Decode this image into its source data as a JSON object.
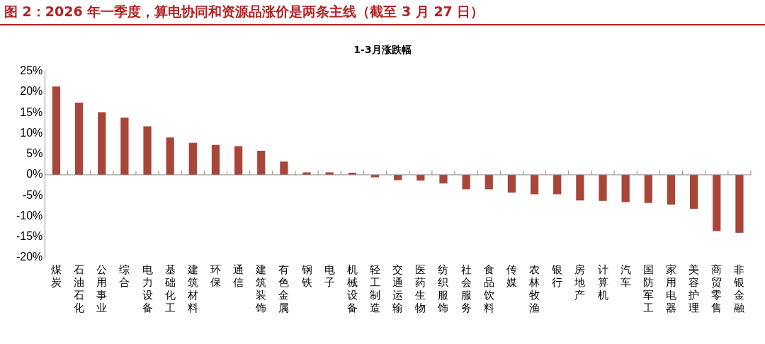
{
  "chart_data": {
    "type": "bar",
    "title": "图 2：2026 年一季度，算电协同和资源品涨价是两条主线（截至 3 月 27 日）",
    "subtitle": "1-3月涨跌幅",
    "categories": [
      "煤炭",
      "石油石化",
      "公用事业",
      "综合",
      "电力设备",
      "基础化工",
      "建筑材料",
      "环保",
      "通信",
      "建筑装饰",
      "有色金属",
      "钢铁",
      "电子",
      "机械设备",
      "轻工制造",
      "交通运输",
      "医药生物",
      "纺织服饰",
      "社会服务",
      "食品饮料",
      "传媒",
      "农林牧渔",
      "银行",
      "房地产",
      "计算机",
      "汽车",
      "国防军工",
      "家用电器",
      "美容护理",
      "商贸零售",
      "非银金融"
    ],
    "values": [
      21.3,
      17.4,
      15.1,
      13.8,
      11.7,
      9.0,
      7.7,
      7.2,
      6.9,
      5.8,
      3.2,
      0.6,
      0.6,
      0.5,
      -0.6,
      -1.3,
      -1.4,
      -2.1,
      -3.5,
      -3.5,
      -4.3,
      -4.7,
      -4.7,
      -6.2,
      -6.3,
      -6.6,
      -6.8,
      -7.2,
      -8.2,
      -13.6,
      -14.0
    ],
    "color": "#a9463a",
    "ylim": [
      -20,
      25
    ],
    "yticks": [
      {
        "value": -20,
        "label": "-20%"
      },
      {
        "value": -15,
        "label": "-15%"
      },
      {
        "value": -10,
        "label": "-10%"
      },
      {
        "value": -5,
        "label": "-5%"
      },
      {
        "value": 0,
        "label": "0%"
      },
      {
        "value": 5,
        "label": "5%"
      },
      {
        "value": 10,
        "label": "10%"
      },
      {
        "value": 15,
        "label": "15%"
      },
      {
        "value": 20,
        "label": "20%"
      },
      {
        "value": 25,
        "label": "25%"
      }
    ],
    "legend": false
  }
}
